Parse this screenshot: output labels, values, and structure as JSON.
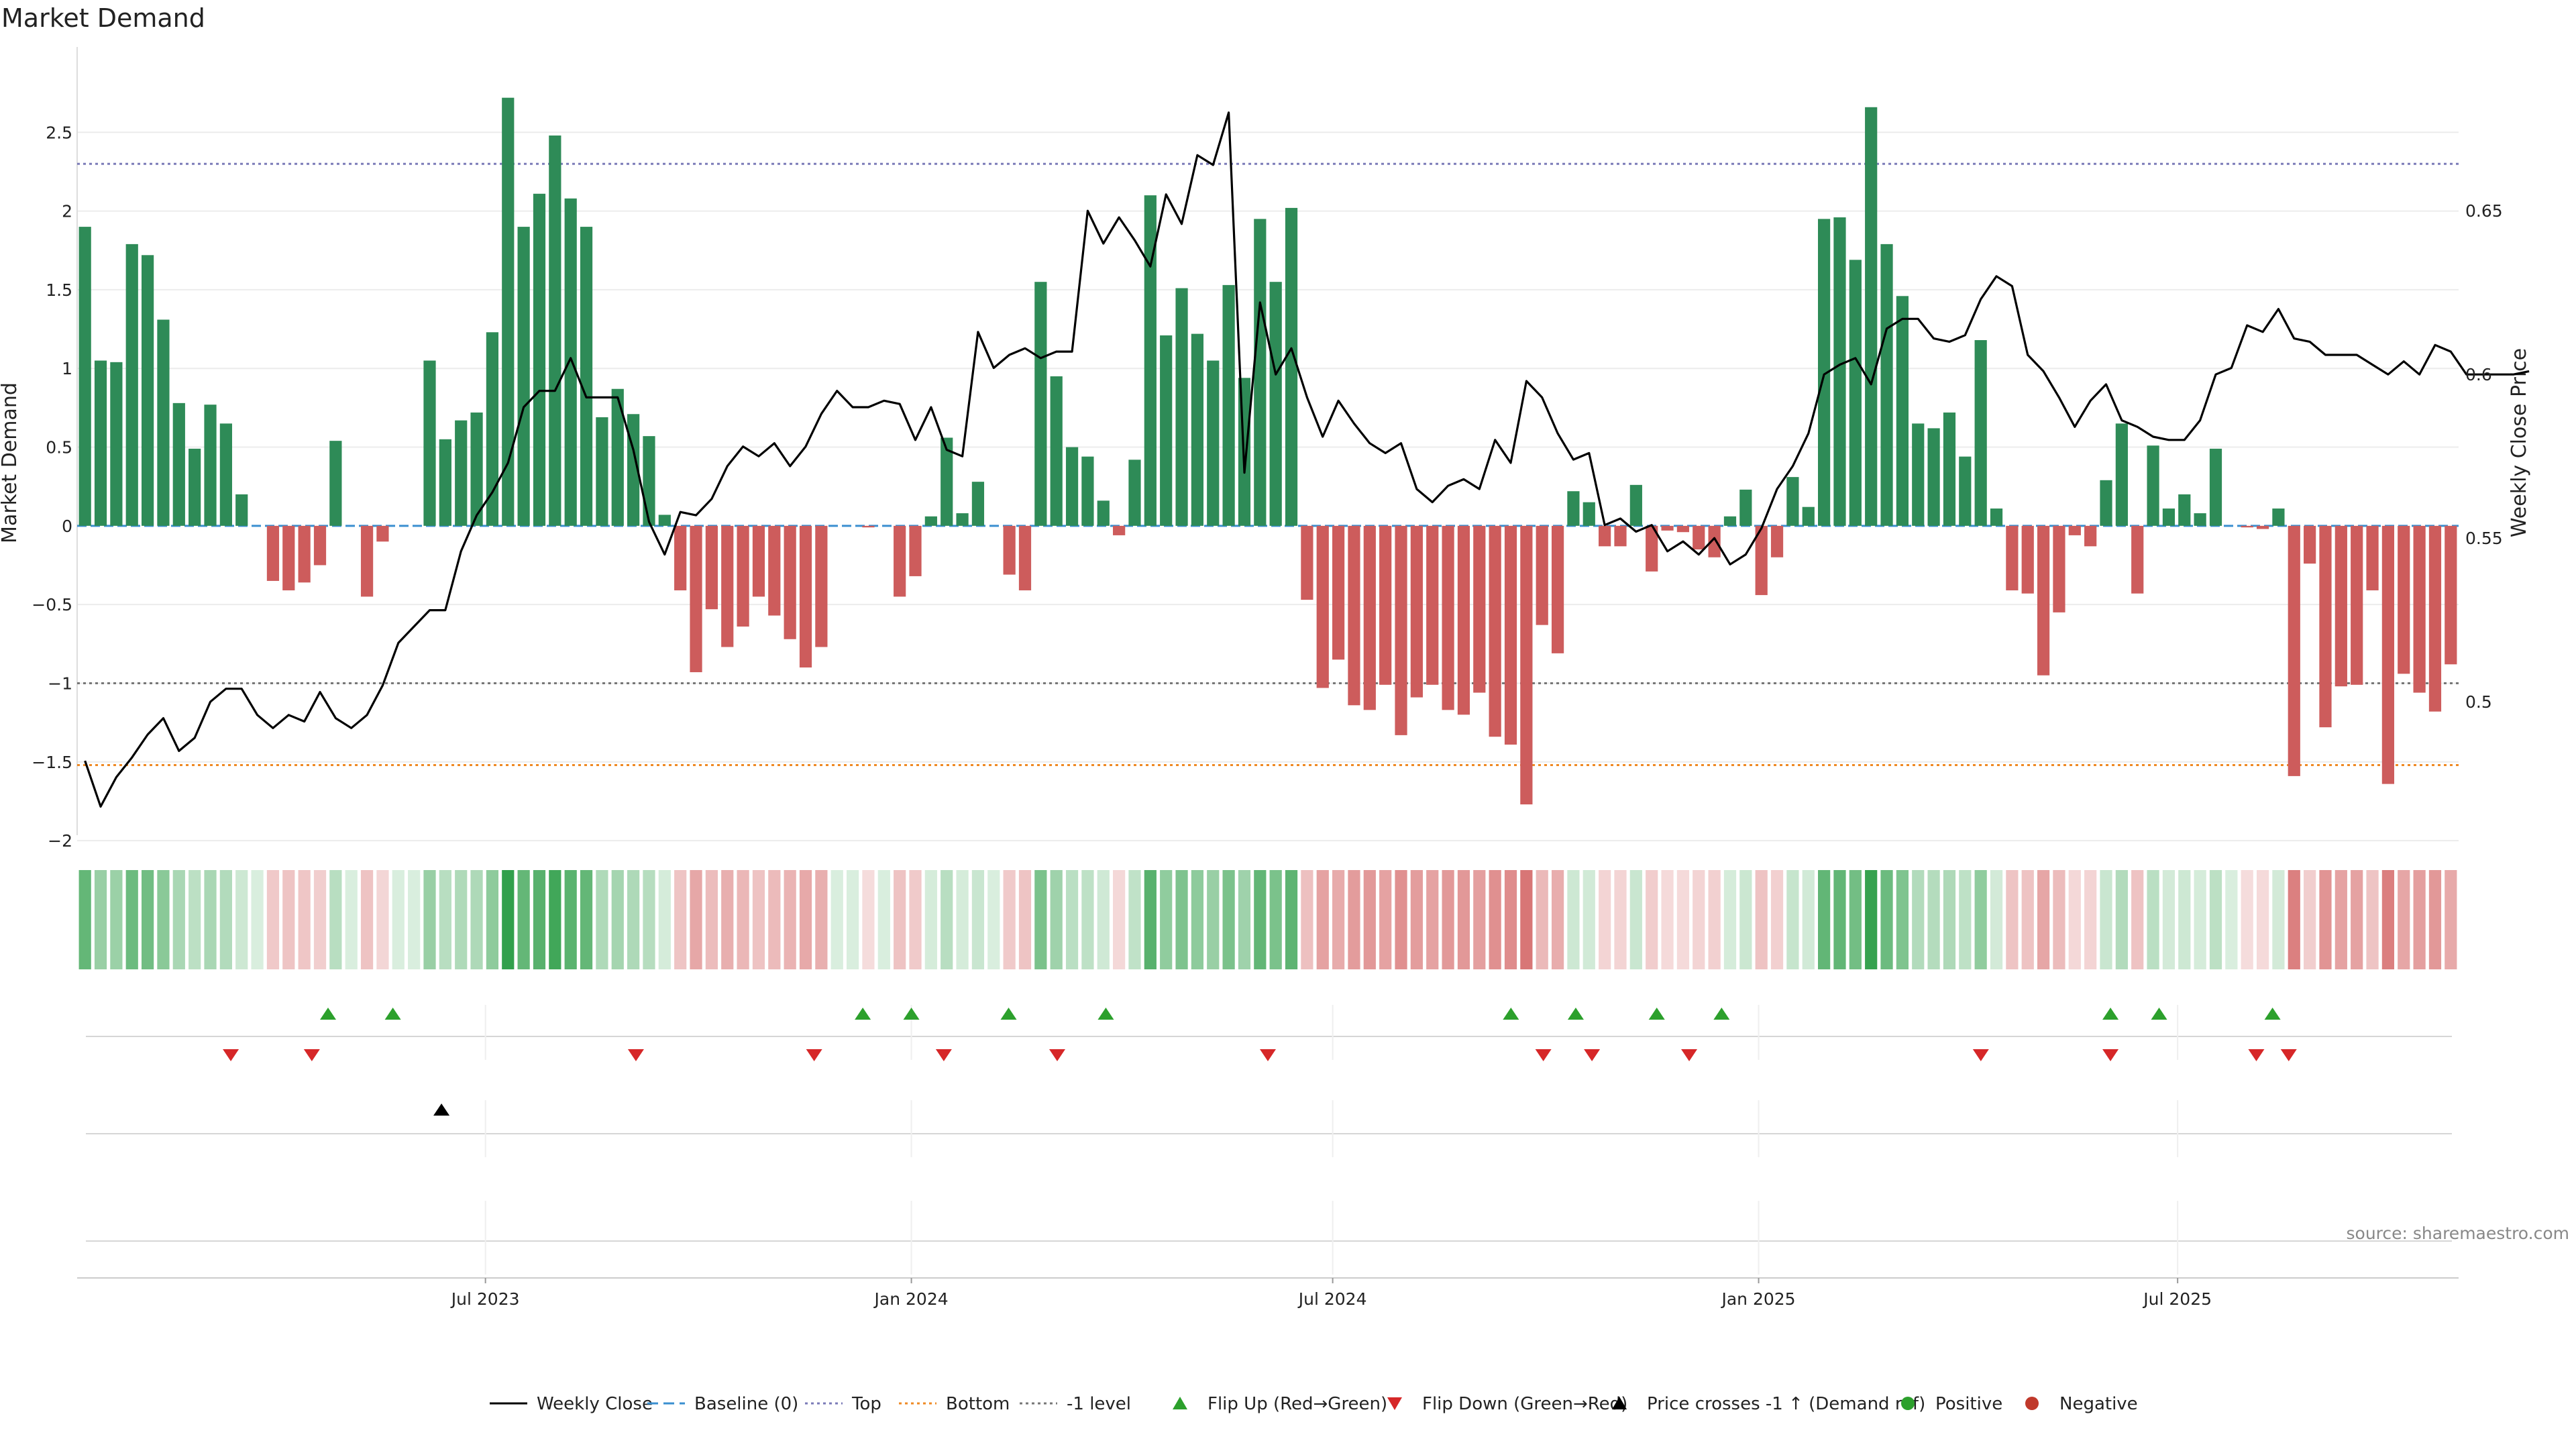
{
  "chart_data": {
    "type": "bar",
    "title": "Market Demand",
    "ylabel_left": "Market Demand",
    "ylabel_right": "Weekly Close Price",
    "ylim_left": [
      -2.2,
      3.0
    ],
    "ylim_right": [
      0.448,
      0.698
    ],
    "y_ticks_left": [
      {
        "v": 2.5,
        "label": "2.5"
      },
      {
        "v": 2,
        "label": "2"
      },
      {
        "v": 1.5,
        "label": "1.5"
      },
      {
        "v": 1,
        "label": "1"
      },
      {
        "v": 0.5,
        "label": "0.5"
      },
      {
        "v": 0,
        "label": "0"
      },
      {
        "v": -0.5,
        "label": "−0.5"
      },
      {
        "v": -1,
        "label": "−1"
      },
      {
        "v": -1.5,
        "label": "−1.5"
      },
      {
        "v": -2,
        "label": "−2"
      }
    ],
    "y_ticks_right": [
      {
        "v": 0.65,
        "label": "0.65"
      },
      {
        "v": 0.6,
        "label": "0.6"
      },
      {
        "v": 0.55,
        "label": "0.55"
      },
      {
        "v": 0.5,
        "label": "0.5"
      }
    ],
    "x_date_range": [
      "2023-01-09",
      "2025-10-27"
    ],
    "x_ticks": [
      {
        "date": "2023-07-01",
        "label": "Jul 2023"
      },
      {
        "date": "2024-01-01",
        "label": "Jan 2024"
      },
      {
        "date": "2024-07-01",
        "label": "Jul 2024"
      },
      {
        "date": "2025-01-01",
        "label": "Jan 2025"
      },
      {
        "date": "2025-07-01",
        "label": "Jul 2025"
      }
    ],
    "reference_lines": [
      {
        "name": "Top",
        "value": 2.3,
        "color": "#7b7bb8"
      },
      {
        "name": "Bottom",
        "value": -1.52,
        "color": "#ef8a24"
      },
      {
        "name": "-1 level",
        "value": -1.0,
        "color": "#777777"
      },
      {
        "name": "Baseline (0)",
        "value": 0,
        "color": "#3a8fd0"
      }
    ],
    "series": [
      {
        "name": "Market Demand",
        "values": [
          1.9,
          1.05,
          1.04,
          1.79,
          1.72,
          1.31,
          0.78,
          0.49,
          0.77,
          0.65,
          0.2,
          0,
          -0.35,
          -0.41,
          -0.36,
          -0.25,
          0.54,
          0,
          -0.45,
          -0.1,
          0,
          0,
          1.05,
          0.55,
          0.67,
          0.72,
          1.23,
          2.72,
          1.9,
          2.11,
          2.48,
          2.08,
          1.9,
          0.69,
          0.87,
          0.71,
          0.57,
          0.07,
          -0.41,
          -0.93,
          -0.53,
          -0.77,
          -0.64,
          -0.45,
          -0.57,
          -0.72,
          -0.9,
          -0.77,
          0,
          0,
          -0.01,
          0,
          -0.45,
          -0.32,
          0.06,
          0.56,
          0.08,
          0.28,
          0,
          -0.31,
          -0.41,
          1.55,
          0.95,
          0.5,
          0.44,
          0.16,
          -0.06,
          0.42,
          2.1,
          1.21,
          1.51,
          1.22,
          1.05,
          1.53,
          0.94,
          1.95,
          1.55,
          2.02,
          -0.47,
          -1.03,
          -0.85,
          -1.14,
          -1.17,
          -1.01,
          -1.33,
          -1.09,
          -1.01,
          -1.17,
          -1.2,
          -1.06,
          -1.34,
          -1.39,
          -1.77,
          -0.63,
          -0.81,
          0.22,
          0.15,
          -0.13,
          -0.13,
          0.26,
          -0.29,
          -0.03,
          -0.04,
          -0.15,
          -0.2,
          0.06,
          0.23,
          -0.44,
          -0.2,
          0.31,
          0.12,
          1.95,
          1.96,
          1.69,
          2.66,
          1.79,
          1.46,
          0.65,
          0.62,
          0.72,
          0.44,
          1.18,
          0.11,
          -0.41,
          -0.43,
          -0.95,
          -0.55,
          -0.06,
          -0.13,
          0.29,
          0.65,
          -0.43,
          0.51,
          0.11,
          0.2,
          0.08,
          0.49,
          0,
          -0.01,
          -0.02,
          0.11,
          -1.59,
          -0.24,
          -1.28,
          -1.02,
          -1.01,
          -0.41,
          -1.64,
          -0.94,
          -1.06,
          -1.18,
          -0.88
        ]
      },
      {
        "name": "Weekly Close",
        "values": [
          0.482,
          0.468,
          0.477,
          0.483,
          0.49,
          0.495,
          0.485,
          0.489,
          0.5,
          0.504,
          0.504,
          0.496,
          0.492,
          0.496,
          0.494,
          0.503,
          0.495,
          0.492,
          0.496,
          0.505,
          0.518,
          0.523,
          0.528,
          0.528,
          0.546,
          0.557,
          0.564,
          0.573,
          0.59,
          0.595,
          0.595,
          0.605,
          0.593,
          0.593,
          0.593,
          0.577,
          0.555,
          0.545,
          0.558,
          0.557,
          0.562,
          0.572,
          0.578,
          0.575,
          0.579,
          0.572,
          0.578,
          0.588,
          0.595,
          0.59,
          0.59,
          0.592,
          0.591,
          0.58,
          0.59,
          0.577,
          0.575,
          0.613,
          0.602,
          0.606,
          0.608,
          0.605,
          0.607,
          0.607,
          0.65,
          0.64,
          0.648,
          0.641,
          0.633,
          0.655,
          0.646,
          0.667,
          0.664,
          0.68,
          0.57,
          0.622,
          0.6,
          0.608,
          0.593,
          0.581,
          0.592,
          0.585,
          0.579,
          0.576,
          0.579,
          0.565,
          0.561,
          0.566,
          0.568,
          0.565,
          0.58,
          0.573,
          0.598,
          0.593,
          0.582,
          0.574,
          0.576,
          0.554,
          0.556,
          0.552,
          0.554,
          0.546,
          0.549,
          0.545,
          0.55,
          0.542,
          0.545,
          0.553,
          0.565,
          0.572,
          0.582,
          0.6,
          0.603,
          0.605,
          0.597,
          0.614,
          0.617,
          0.617,
          0.611,
          0.61,
          0.612,
          0.623,
          0.63,
          0.627,
          0.606,
          0.601,
          0.593,
          0.584,
          0.592,
          0.597,
          0.586,
          0.584,
          0.581,
          0.58,
          0.58,
          0.586,
          0.6,
          0.602,
          0.615,
          0.613,
          0.62,
          0.611,
          0.61,
          0.606,
          0.606,
          0.606,
          0.603,
          0.6,
          0.604,
          0.6,
          0.609,
          0.607,
          0.6,
          0.6,
          0.6,
          0.6,
          0.601
        ]
      }
    ],
    "flip_up_dates": [
      "2023-04-24",
      "2023-05-22",
      "2023-12-11",
      "2024-01-01",
      "2024-02-12",
      "2024-03-25",
      "2024-09-16",
      "2024-10-14",
      "2024-11-18",
      "2024-12-16",
      "2025-06-02",
      "2025-06-23",
      "2025-08-11"
    ],
    "flip_down_dates": [
      "2023-03-13",
      "2023-04-17",
      "2023-09-04",
      "2023-11-20",
      "2024-01-15",
      "2024-03-04",
      "2024-06-03",
      "2024-09-30",
      "2024-10-21",
      "2024-12-02",
      "2025-04-07",
      "2025-06-02",
      "2025-08-04",
      "2025-08-18"
    ],
    "price_cross_dates": [
      "2023-06-12"
    ],
    "legend": [
      {
        "label": "Weekly Close",
        "kind": "line",
        "color": "#000000"
      },
      {
        "label": "Baseline (0)",
        "kind": "dash",
        "color": "#3a8fd0"
      },
      {
        "label": "Top",
        "kind": "dot",
        "color": "#7b7bb8"
      },
      {
        "label": "Bottom",
        "kind": "dot",
        "color": "#ef8a24"
      },
      {
        "label": "-1 level",
        "kind": "dot",
        "color": "#777777"
      },
      {
        "label": "Flip Up (Red→Green)",
        "kind": "tri-up",
        "color": "#2ca02c"
      },
      {
        "label": "Flip Down (Green→Red)",
        "kind": "tri-down",
        "color": "#d62728"
      },
      {
        "label": "Price crosses -1 ↑ (Demand ref)",
        "kind": "tri-up",
        "color": "#000000"
      },
      {
        "label": "Positive",
        "kind": "circle",
        "color": "#2ca02c"
      },
      {
        "label": "Negative",
        "kind": "circle",
        "color": "#c0392b"
      }
    ],
    "colors": {
      "positive": "#2e8b57",
      "negative": "#cd5c5c",
      "heat_pos": "#2e9e48",
      "heat_neg": "#c83c3c"
    },
    "grid": "horizontal",
    "legend_position": "bottom"
  },
  "source": "source: sharemaestro.com"
}
